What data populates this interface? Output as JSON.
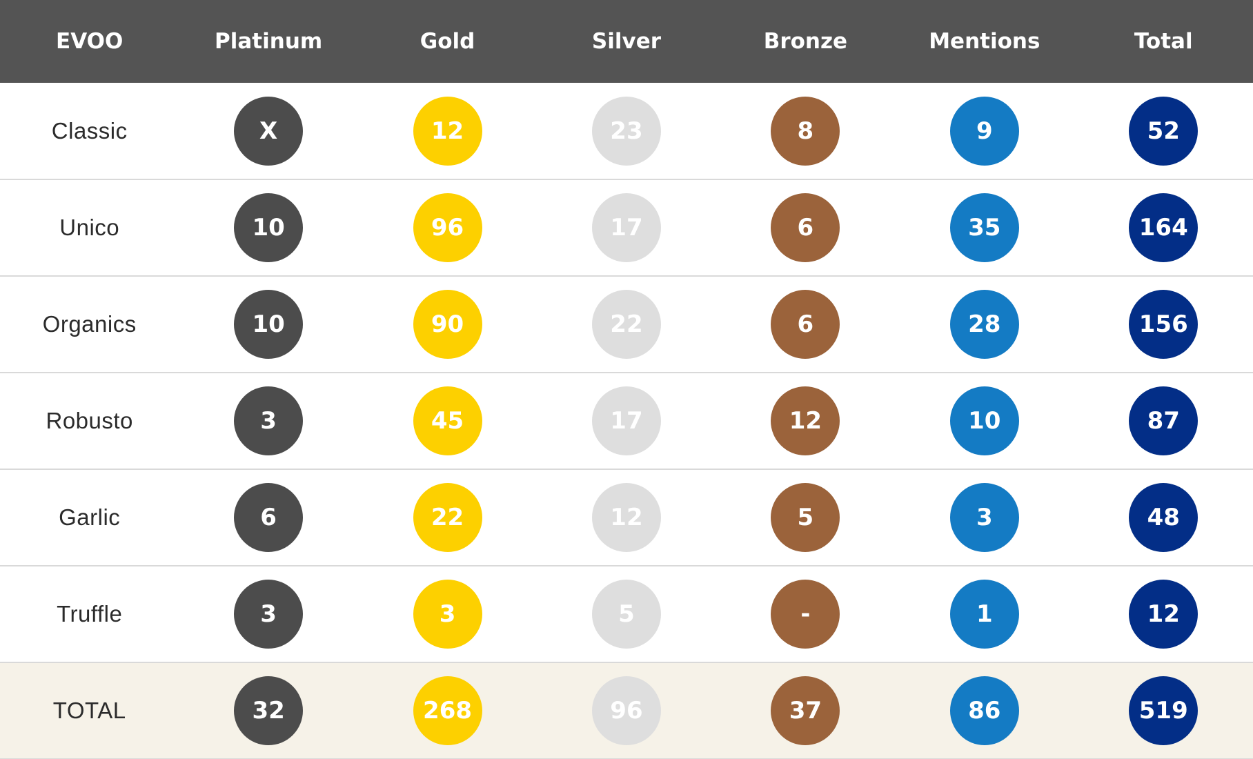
{
  "table": {
    "headers": [
      "EVOO",
      "Platinum",
      "Gold",
      "Silver",
      "Bronze",
      "Mentions",
      "Total"
    ],
    "rows": [
      {
        "label": "Classic",
        "platinum": "X",
        "gold": "12",
        "silver": "23",
        "bronze": "8",
        "mentions": "9",
        "total": "52"
      },
      {
        "label": "Unico",
        "platinum": "10",
        "gold": "96",
        "silver": "17",
        "bronze": "6",
        "mentions": "35",
        "total": "164"
      },
      {
        "label": "Organics",
        "platinum": "10",
        "gold": "90",
        "silver": "22",
        "bronze": "6",
        "mentions": "28",
        "total": "156"
      },
      {
        "label": "Robusto",
        "platinum": "3",
        "gold": "45",
        "silver": "17",
        "bronze": "12",
        "mentions": "10",
        "total": "87"
      },
      {
        "label": "Garlic",
        "platinum": "6",
        "gold": "22",
        "silver": "12",
        "bronze": "5",
        "mentions": "3",
        "total": "48"
      },
      {
        "label": "Truffle",
        "platinum": "3",
        "gold": "3",
        "silver": "5",
        "bronze": "-",
        "mentions": "1",
        "total": "12"
      },
      {
        "label": "TOTAL",
        "platinum": "32",
        "gold": "268",
        "silver": "96",
        "bronze": "37",
        "mentions": "86",
        "total": "519"
      }
    ]
  },
  "colors": {
    "header_background": "#545454",
    "platinum": "#4c4c4c",
    "gold": "#fdd000",
    "silver": "#dedede",
    "bronze": "#9b633b",
    "mentions": "#147bc4",
    "total": "#032e87",
    "total_row_background": "#f6f2e8"
  }
}
